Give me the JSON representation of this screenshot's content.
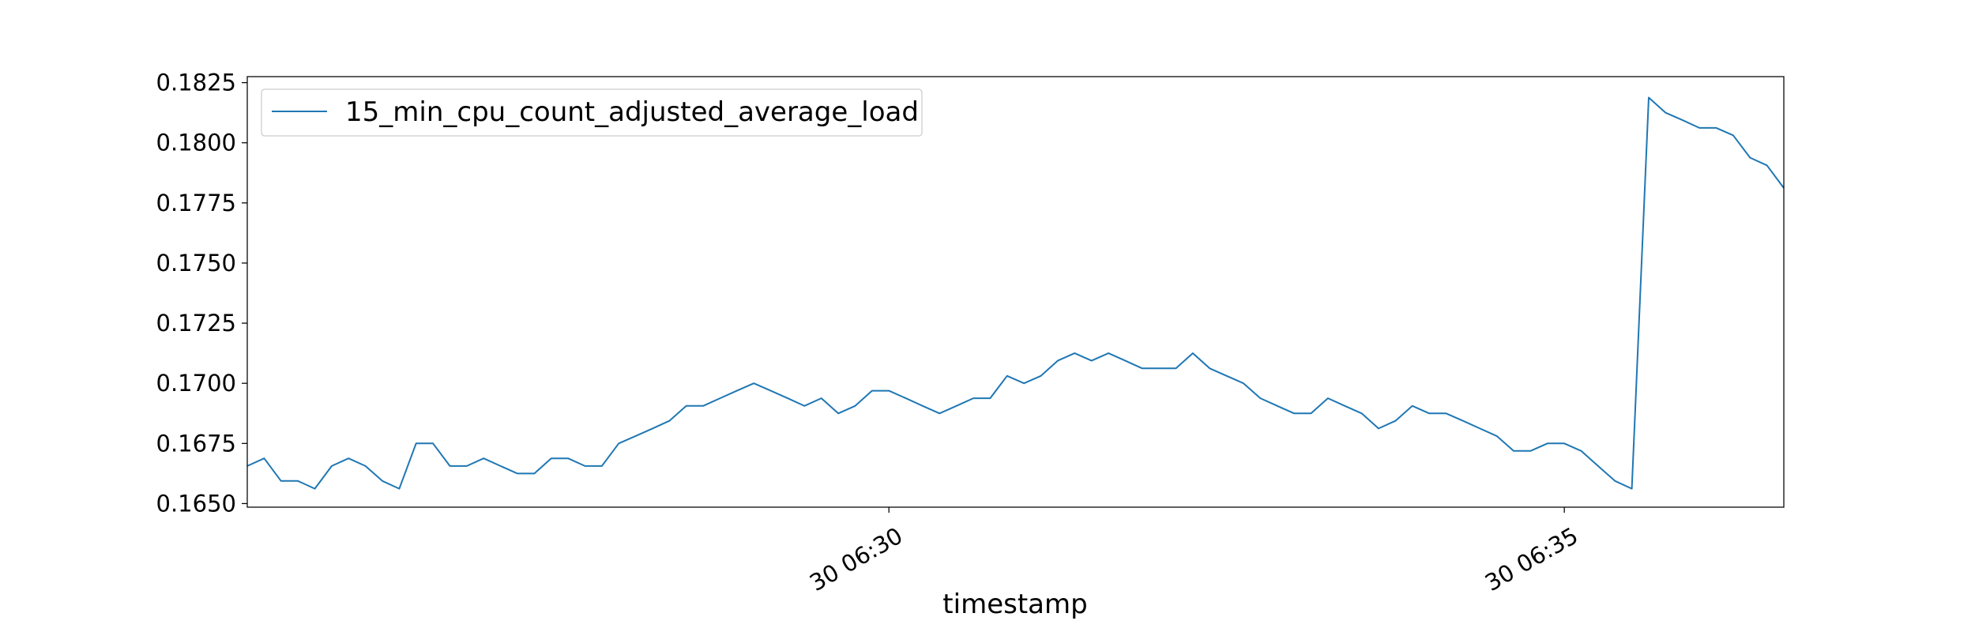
{
  "chart_data": {
    "type": "line",
    "xlabel": "timestamp",
    "ylabel": "",
    "title": "",
    "ylim": [
      0.16485,
      0.18275
    ],
    "x_tick_labels": [
      {
        "label": "30 06:30",
        "index": 38
      },
      {
        "label": "30 06:35",
        "index": 78
      }
    ],
    "y_ticks": [
      0.165,
      0.1675,
      0.17,
      0.1725,
      0.175,
      0.1775,
      0.18,
      0.1825
    ],
    "y_tick_labels": [
      "0.1650",
      "0.1675",
      "0.1700",
      "0.1725",
      "0.1750",
      "0.1775",
      "0.1800",
      "0.1825"
    ],
    "legend_position": "upper-left",
    "grid": false,
    "series": [
      {
        "name": "15_min_cpu_count_adjusted_average_load",
        "color": "#1f77b4",
        "values": [
          0.16656,
          0.16688,
          0.16594,
          0.16594,
          0.16562,
          0.16656,
          0.16688,
          0.16656,
          0.16594,
          0.16562,
          0.1675,
          0.1675,
          0.16656,
          0.16656,
          0.16688,
          0.16656,
          0.16625,
          0.16625,
          0.16688,
          0.16688,
          0.16656,
          0.16656,
          0.1675,
          0.16781,
          0.16812,
          0.16844,
          0.16906,
          0.16906,
          0.16938,
          0.16969,
          0.17,
          0.16969,
          0.16938,
          0.16906,
          0.16938,
          0.16875,
          0.16906,
          0.16969,
          0.16969,
          0.16938,
          0.16906,
          0.16875,
          0.16906,
          0.16938,
          0.16938,
          0.17031,
          0.17,
          0.17031,
          0.17094,
          0.17125,
          0.17094,
          0.17125,
          0.17094,
          0.17062,
          0.17062,
          0.17062,
          0.17125,
          0.17062,
          0.17031,
          0.17,
          0.16938,
          0.16906,
          0.16875,
          0.16875,
          0.16938,
          0.16906,
          0.16875,
          0.16812,
          0.16844,
          0.16906,
          0.16875,
          0.16875,
          0.16844,
          0.16812,
          0.16781,
          0.16719,
          0.16719,
          0.1675,
          0.1675,
          0.16719,
          0.16656,
          0.16594,
          0.16562,
          0.18188,
          0.18125,
          0.18094,
          0.18062,
          0.18062,
          0.18031,
          0.17938,
          0.17906,
          0.17812
        ]
      }
    ]
  }
}
